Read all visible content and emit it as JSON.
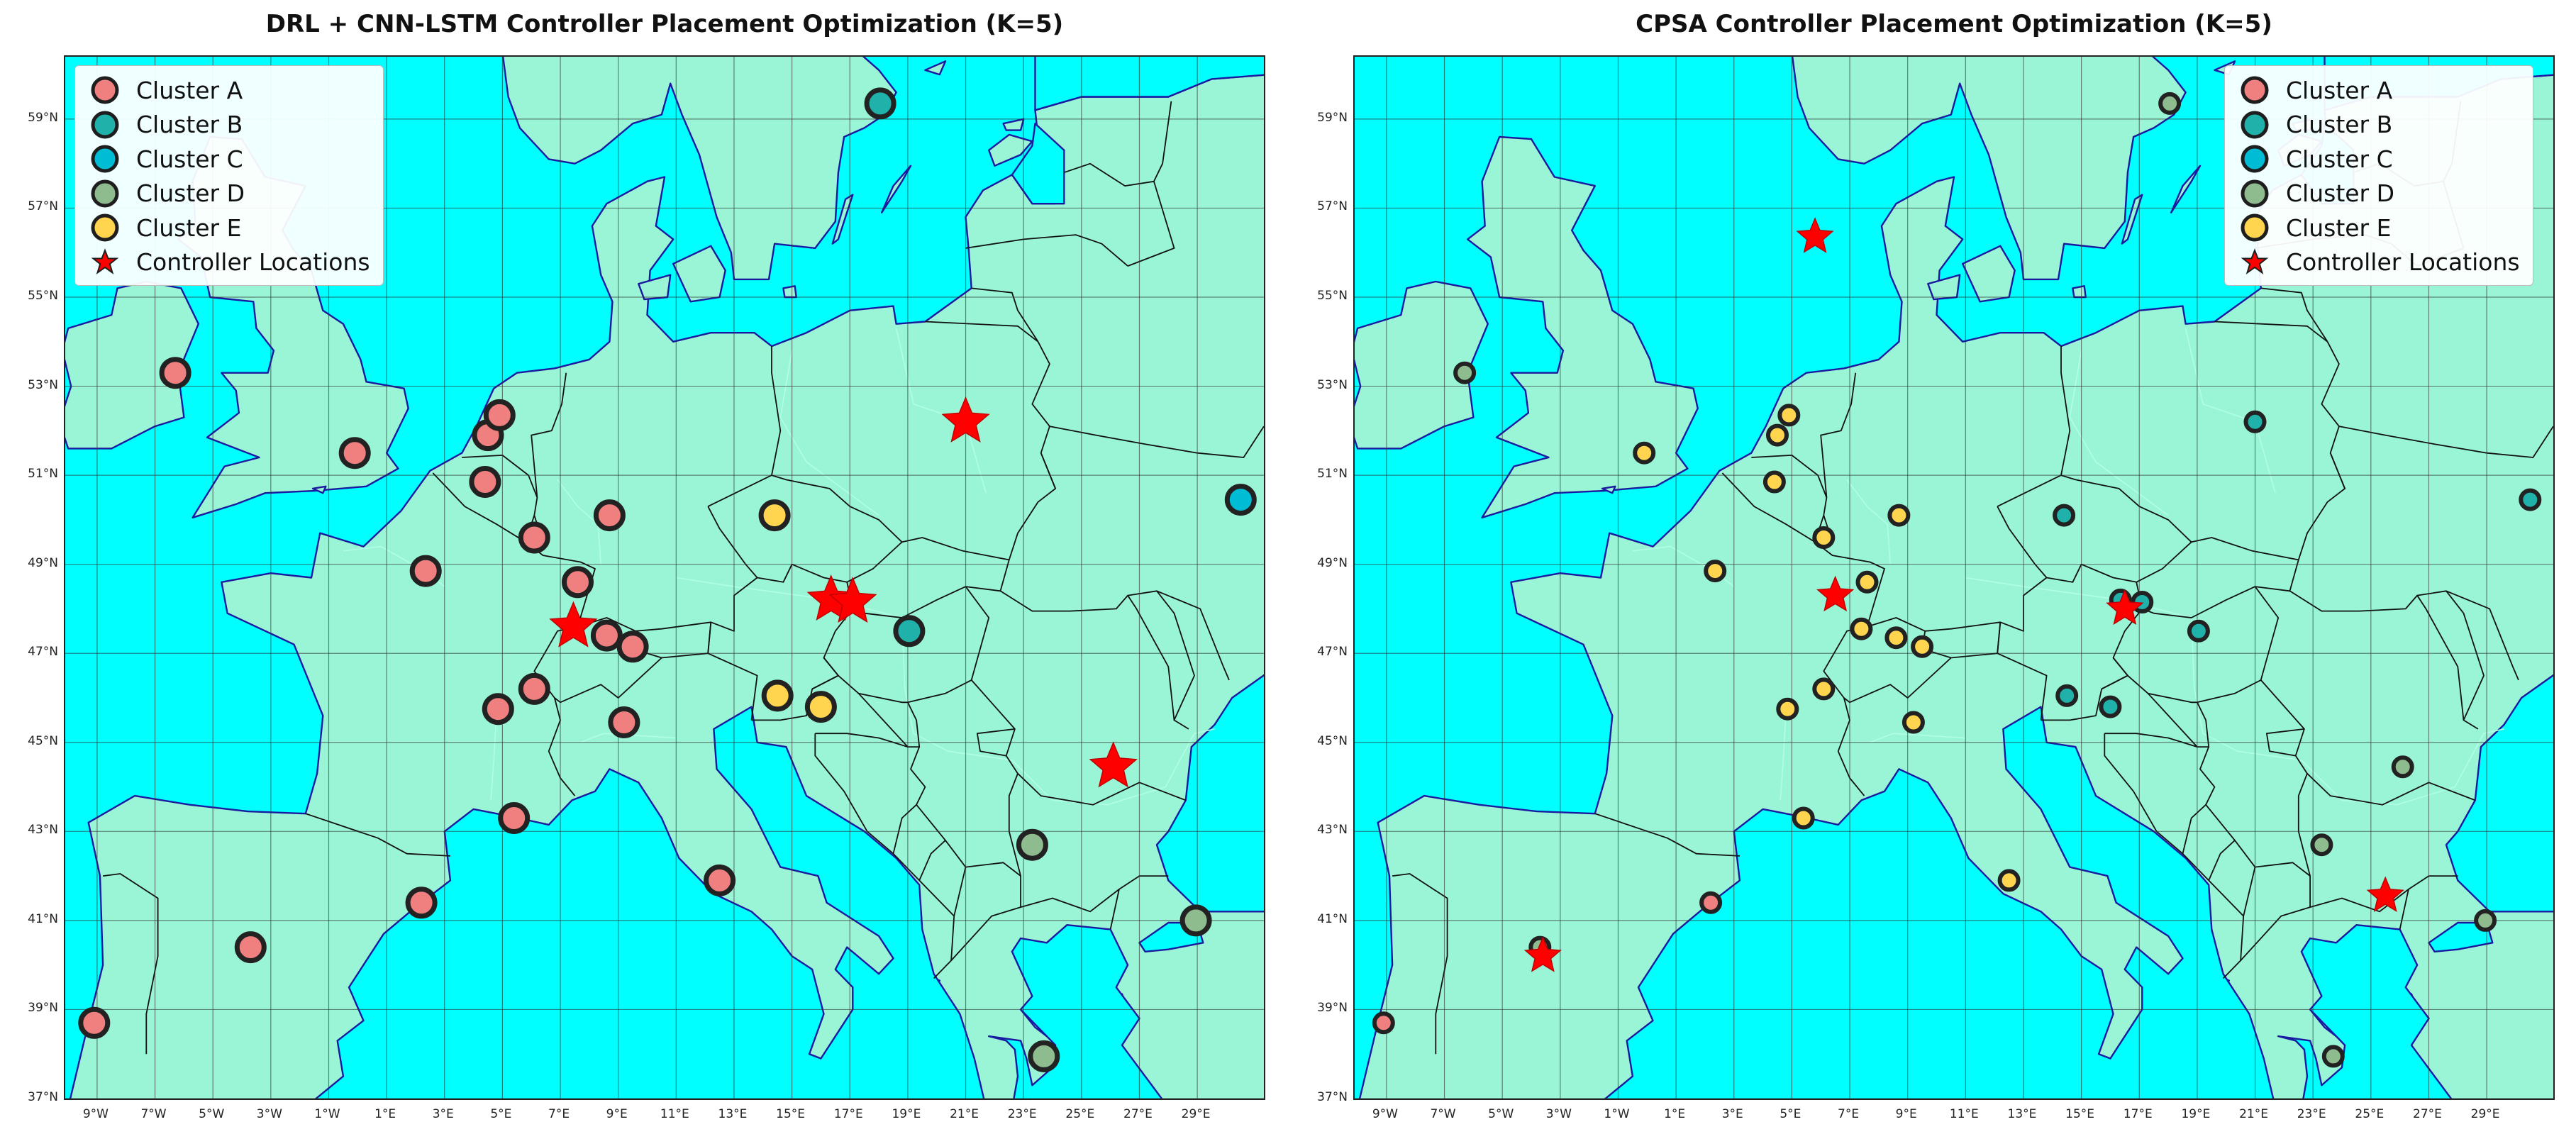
{
  "colors": {
    "sea": "#00ffff",
    "land": "#99f5d5",
    "coast": "#1a1aa0",
    "border": "#111111",
    "grid": "#333333",
    "cluster_A": "#f08080",
    "cluster_B": "#20b2aa",
    "cluster_C": "#00bcd4",
    "cluster_D": "#8fbc8f",
    "cluster_E": "#ffd54f",
    "controller": "#ff0000"
  },
  "lon_ticks": [
    "9°W",
    "7°W",
    "5°W",
    "3°W",
    "1°W",
    "1°E",
    "3°E",
    "5°E",
    "7°E",
    "9°E",
    "11°E",
    "13°E",
    "15°E",
    "17°E",
    "19°E",
    "21°E",
    "23°E",
    "25°E",
    "27°E",
    "29°E"
  ],
  "lat_ticks": [
    "59°N",
    "57°N",
    "55°N",
    "53°N",
    "51°N",
    "49°N",
    "47°N",
    "45°N",
    "43°N",
    "41°N",
    "39°N",
    "37°N"
  ],
  "legend": {
    "items": [
      {
        "key": "A",
        "label": "Cluster A",
        "icon": "circle-marker"
      },
      {
        "key": "B",
        "label": "Cluster B",
        "icon": "circle-marker"
      },
      {
        "key": "C",
        "label": "Cluster C",
        "icon": "circle-marker"
      },
      {
        "key": "D",
        "label": "Cluster D",
        "icon": "circle-marker"
      },
      {
        "key": "E",
        "label": "Cluster E",
        "icon": "circle-marker"
      },
      {
        "key": "S",
        "label": "Controller Locations",
        "icon": "star-marker"
      }
    ]
  },
  "panels": [
    {
      "title": "DRL + CNN-LSTM Controller Placement Optimization (K=5)",
      "legend_position": "top-left",
      "nodes": [
        {
          "lon": -6.3,
          "lat": 53.3,
          "c": "A"
        },
        {
          "lon": -0.1,
          "lat": 51.5,
          "c": "A"
        },
        {
          "lon": 2.35,
          "lat": 48.85,
          "c": "A"
        },
        {
          "lon": 4.4,
          "lat": 50.85,
          "c": "A"
        },
        {
          "lon": 4.5,
          "lat": 51.9,
          "c": "A"
        },
        {
          "lon": 4.9,
          "lat": 52.35,
          "c": "A"
        },
        {
          "lon": 6.1,
          "lat": 49.6,
          "c": "A"
        },
        {
          "lon": 8.7,
          "lat": 50.1,
          "c": "A"
        },
        {
          "lon": 8.6,
          "lat": 47.4,
          "c": "A"
        },
        {
          "lon": 9.5,
          "lat": 47.15,
          "c": "A"
        },
        {
          "lon": 7.6,
          "lat": 48.6,
          "c": "A"
        },
        {
          "lon": 6.1,
          "lat": 46.2,
          "c": "A"
        },
        {
          "lon": 4.85,
          "lat": 45.75,
          "c": "A"
        },
        {
          "lon": 5.4,
          "lat": 43.3,
          "c": "A"
        },
        {
          "lon": 9.2,
          "lat": 45.45,
          "c": "A"
        },
        {
          "lon": 12.5,
          "lat": 41.9,
          "c": "A"
        },
        {
          "lon": 2.2,
          "lat": 41.4,
          "c": "A"
        },
        {
          "lon": -3.7,
          "lat": 40.4,
          "c": "A"
        },
        {
          "lon": -9.1,
          "lat": 38.7,
          "c": "A"
        },
        {
          "lon": 18.05,
          "lat": 59.35,
          "c": "B"
        },
        {
          "lon": 30.5,
          "lat": 50.45,
          "c": "C"
        },
        {
          "lon": 19.05,
          "lat": 47.5,
          "c": "B"
        },
        {
          "lon": 23.7,
          "lat": 37.95,
          "c": "D"
        },
        {
          "lon": 23.3,
          "lat": 42.7,
          "c": "D"
        },
        {
          "lon": 28.95,
          "lat": 41.0,
          "c": "D"
        },
        {
          "lon": 14.4,
          "lat": 50.1,
          "c": "E"
        },
        {
          "lon": 14.5,
          "lat": 46.05,
          "c": "E"
        },
        {
          "lon": 16.0,
          "lat": 45.8,
          "c": "E"
        }
      ],
      "controllers": [
        {
          "lon": 21.0,
          "lat": 52.2
        },
        {
          "lon": 7.45,
          "lat": 47.6
        },
        {
          "lon": 16.35,
          "lat": 48.2
        },
        {
          "lon": 17.1,
          "lat": 48.15
        },
        {
          "lon": 26.1,
          "lat": 44.45
        }
      ]
    },
    {
      "title": "CPSA Controller Placement Optimization (K=5)",
      "legend_position": "top-right",
      "nodes": [
        {
          "lon": -9.1,
          "lat": 38.7,
          "c": "A"
        },
        {
          "lon": 2.2,
          "lat": 41.4,
          "c": "A"
        },
        {
          "lon": -6.3,
          "lat": 53.3,
          "c": "D"
        },
        {
          "lon": -3.7,
          "lat": 40.4,
          "c": "D"
        },
        {
          "lon": 26.1,
          "lat": 44.45,
          "c": "D"
        },
        {
          "lon": 23.3,
          "lat": 42.7,
          "c": "D"
        },
        {
          "lon": 28.95,
          "lat": 41.0,
          "c": "D"
        },
        {
          "lon": 23.7,
          "lat": 37.95,
          "c": "D"
        },
        {
          "lon": 18.05,
          "lat": 59.35,
          "c": "D"
        },
        {
          "lon": -0.1,
          "lat": 51.5,
          "c": "E"
        },
        {
          "lon": 2.35,
          "lat": 48.85,
          "c": "E"
        },
        {
          "lon": 4.4,
          "lat": 50.85,
          "c": "E"
        },
        {
          "lon": 4.5,
          "lat": 51.9,
          "c": "E"
        },
        {
          "lon": 4.9,
          "lat": 52.35,
          "c": "E"
        },
        {
          "lon": 6.1,
          "lat": 49.6,
          "c": "E"
        },
        {
          "lon": 8.7,
          "lat": 50.1,
          "c": "E"
        },
        {
          "lon": 7.6,
          "lat": 48.6,
          "c": "E"
        },
        {
          "lon": 7.4,
          "lat": 47.55,
          "c": "E"
        },
        {
          "lon": 8.6,
          "lat": 47.35,
          "c": "E"
        },
        {
          "lon": 9.5,
          "lat": 47.15,
          "c": "E"
        },
        {
          "lon": 6.1,
          "lat": 46.2,
          "c": "E"
        },
        {
          "lon": 4.85,
          "lat": 45.75,
          "c": "E"
        },
        {
          "lon": 5.4,
          "lat": 43.3,
          "c": "E"
        },
        {
          "lon": 9.2,
          "lat": 45.45,
          "c": "E"
        },
        {
          "lon": 12.5,
          "lat": 41.9,
          "c": "E"
        },
        {
          "lon": 14.4,
          "lat": 50.1,
          "c": "B"
        },
        {
          "lon": 14.5,
          "lat": 46.05,
          "c": "B"
        },
        {
          "lon": 16.0,
          "lat": 45.8,
          "c": "B"
        },
        {
          "lon": 16.35,
          "lat": 48.2,
          "c": "B"
        },
        {
          "lon": 17.1,
          "lat": 48.15,
          "c": "B"
        },
        {
          "lon": 19.05,
          "lat": 47.5,
          "c": "B"
        },
        {
          "lon": 21.0,
          "lat": 52.2,
          "c": "B"
        },
        {
          "lon": 30.5,
          "lat": 50.45,
          "c": "B"
        }
      ],
      "controllers": [
        {
          "lon": 5.8,
          "lat": 56.35
        },
        {
          "lon": 6.5,
          "lat": 48.3
        },
        {
          "lon": 16.5,
          "lat": 48.0
        },
        {
          "lon": -3.6,
          "lat": 40.2
        },
        {
          "lon": 25.5,
          "lat": 41.55
        }
      ]
    }
  ]
}
